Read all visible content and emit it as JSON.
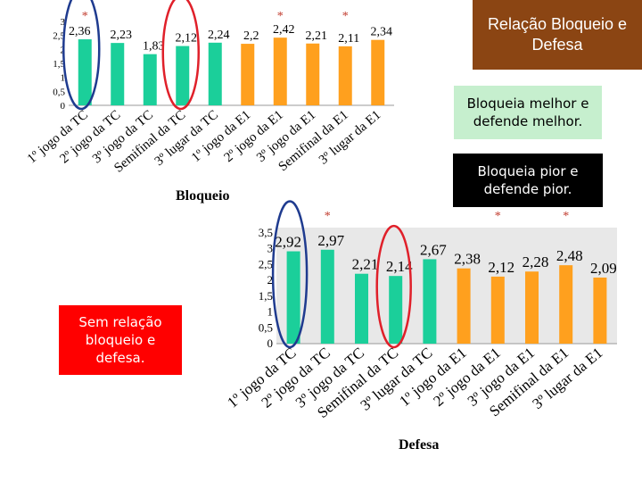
{
  "title": "Relação Bloqueio e Defesa",
  "callouts": {
    "green": "Bloqueia melhor e defende melhor.",
    "black": "Bloqueia pior e defende pior.",
    "red": "Sem relação bloqueio e defesa."
  },
  "colors": {
    "tc": "#1BCF9A",
    "e1": "#FFA01E",
    "title_bg": "#8B4513",
    "circle_blue": "#1F3B8F",
    "circle_red": "#E0202A"
  },
  "chart_data": [
    {
      "type": "bar",
      "xlabel": "Bloqueio",
      "categories": [
        "1º jogo da TC",
        "2º jogo da TC",
        "3º jogo da TC",
        "Semifinal da TC",
        "3º lugar da TC",
        "1º jogo da E1",
        "2º jogo da E1",
        "3º jogo da E1",
        "Semifinal da E1",
        "3º lugar da E1"
      ],
      "values": [
        2.36,
        2.23,
        1.83,
        2.12,
        2.24,
        2.2,
        2.42,
        2.21,
        2.11,
        2.34
      ],
      "value_labels": [
        "2,36",
        "2,23",
        "1,83",
        "2,12",
        "2,24",
        "2,2",
        "2,42",
        "2,21",
        "2,11",
        "2,34"
      ],
      "ylim": [
        0,
        3
      ],
      "yticks": [
        "0",
        "0,5",
        "1",
        "1,5",
        "2",
        "2,5",
        "3"
      ],
      "groups": [
        "TC",
        "TC",
        "TC",
        "TC",
        "TC",
        "E1",
        "E1",
        "E1",
        "E1",
        "E1"
      ],
      "asterisks": [
        0,
        6,
        8
      ],
      "circles": [
        {
          "index": 0,
          "color": "blue"
        },
        {
          "index": 3,
          "color": "red"
        }
      ],
      "background": "plain"
    },
    {
      "type": "bar",
      "xlabel": "Defesa",
      "categories": [
        "1º jogo da TC",
        "2º jogo da TC",
        "3º jogo da TC",
        "Semifinal da TC",
        "3º lugar da TC",
        "1º jogo da E1",
        "2º jogo da E1",
        "3º jogo da E1",
        "Semifinal da E1",
        "3º lugar da E1"
      ],
      "values": [
        2.92,
        2.97,
        2.21,
        2.14,
        2.67,
        2.38,
        2.12,
        2.28,
        2.48,
        2.09
      ],
      "value_labels": [
        "2,92",
        "2,97",
        "2,21",
        "2,14",
        "2,67",
        "2,38",
        "2,12",
        "2,28",
        "2,48",
        "2,09"
      ],
      "ylim": [
        0,
        3.5
      ],
      "yticks": [
        "0",
        "0,5",
        "1",
        "1,5",
        "2",
        "2,5",
        "3",
        "3,5"
      ],
      "groups": [
        "TC",
        "TC",
        "TC",
        "TC",
        "TC",
        "E1",
        "E1",
        "E1",
        "E1",
        "E1"
      ],
      "asterisks": [
        1,
        6,
        8
      ],
      "circles": [
        {
          "index": 0,
          "color": "blue"
        },
        {
          "index": 3,
          "color": "red"
        }
      ],
      "background": "shaded"
    }
  ]
}
